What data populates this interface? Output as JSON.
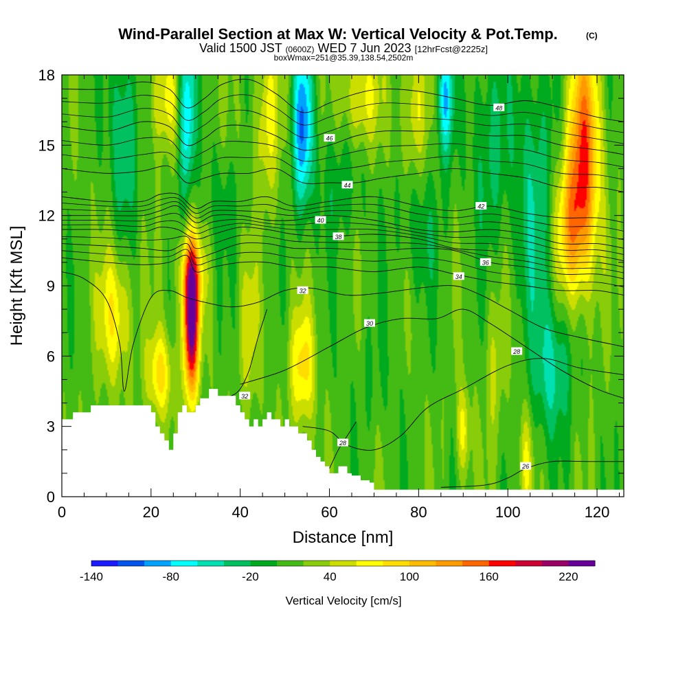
{
  "header": {
    "title": "Wind-Parallel Section at Max W: Vertical Velocity & Pot.Temp.",
    "copyright": "(C)",
    "valid_line_a": "Valid 1500 JST",
    "valid_line_b": "(0600Z)",
    "valid_line_c": "WED 7 Jun 2023",
    "valid_line_d": "[12hrFcst@2225z]",
    "box_line": "boxWmax=251@35.39,138.54,2502m"
  },
  "chart_data": {
    "type": "heatmap",
    "xlabel": "Distance [nm]",
    "ylabel": "Height [Kft MSL]",
    "xlim": [
      0,
      126
    ],
    "ylim": [
      0,
      18
    ],
    "x_ticks": [
      0,
      20,
      40,
      60,
      80,
      100,
      120
    ],
    "x_tick_labels": [
      "0",
      "20",
      "40",
      "60",
      "80",
      "100",
      "120"
    ],
    "y_ticks": [
      0,
      3,
      6,
      9,
      12,
      15,
      18
    ],
    "y_tick_labels": [
      "0",
      "3",
      "6",
      "9",
      "12",
      "15",
      "18"
    ],
    "colorbar": {
      "title": "Vertical Velocity [cm/s]",
      "levels": [
        -140,
        -120,
        -100,
        -80,
        -60,
        -40,
        -20,
        0,
        20,
        40,
        60,
        80,
        100,
        120,
        140,
        160,
        180,
        200,
        220,
        240
      ],
      "labels": [
        "-140",
        "-80",
        "-20",
        "40",
        "100",
        "160",
        "220"
      ],
      "label_values": [
        -140,
        -80,
        -20,
        40,
        100,
        160,
        220
      ],
      "colors": [
        "#1a1aff",
        "#0055ee",
        "#00a2ff",
        "#00ffff",
        "#00e0b0",
        "#00c060",
        "#00aa1e",
        "#44bb14",
        "#88cc0a",
        "#ccdd00",
        "#ffff00",
        "#ffdd00",
        "#ffbb00",
        "#ff9900",
        "#ff6600",
        "#ff0000",
        "#cc0033",
        "#990066",
        "#660099"
      ]
    },
    "terrain_profile": {
      "x": [
        0,
        2.5,
        2.5,
        6.5,
        6.5,
        20,
        20,
        21,
        21,
        22,
        22,
        23,
        23,
        24,
        24,
        25,
        25,
        26,
        26,
        27,
        27,
        28,
        28,
        30,
        30,
        31,
        31,
        33,
        33,
        35,
        35,
        39,
        39,
        40,
        40,
        41,
        41,
        42,
        42,
        43,
        43,
        44,
        44,
        45,
        45,
        46,
        46,
        47,
        47,
        49,
        49,
        50,
        50,
        51,
        51,
        53,
        53,
        55,
        55,
        56,
        56,
        57,
        57,
        58,
        58,
        59,
        59,
        60,
        60,
        62,
        62,
        64,
        64,
        65,
        65,
        67,
        67,
        69,
        69,
        70,
        70,
        74,
        74,
        126
      ],
      "y": [
        3.3,
        3.3,
        3.6,
        3.6,
        3.9,
        3.9,
        3.6,
        3.6,
        3.0,
        3.0,
        2.7,
        2.7,
        2.4,
        2.4,
        2.0,
        2.0,
        2.7,
        2.7,
        3.6,
        3.6,
        3.9,
        3.9,
        3.6,
        3.6,
        3.9,
        3.9,
        4.2,
        4.2,
        4.6,
        4.6,
        4.3,
        4.3,
        3.9,
        3.9,
        3.6,
        3.6,
        3.3,
        3.3,
        3.0,
        3.0,
        3.3,
        3.3,
        3.0,
        3.0,
        3.3,
        3.3,
        3.6,
        3.6,
        3.3,
        3.3,
        3.0,
        3.0,
        3.3,
        3.3,
        3.0,
        3.0,
        2.7,
        2.7,
        2.4,
        2.4,
        2.0,
        2.0,
        1.7,
        1.7,
        1.5,
        1.5,
        1.3,
        1.3,
        1.0,
        1.0,
        1.3,
        1.3,
        1.0,
        1.0,
        0.9,
        0.9,
        0.7,
        0.7,
        0.6,
        0.6,
        0.3,
        0.3,
        0.3,
        0.3
      ]
    },
    "w_features": [
      {
        "x": 29,
        "y": 7.5,
        "sx": 1.2,
        "sy": 2.2,
        "w": 230
      },
      {
        "x": 29,
        "y": 9.5,
        "sx": 2.0,
        "sy": 1.2,
        "w": 70
      },
      {
        "x": 12,
        "y": 7.8,
        "sx": 2.5,
        "sy": 2.0,
        "w": 70
      },
      {
        "x": 22,
        "y": 5.2,
        "sx": 2.0,
        "sy": 1.3,
        "w": 75
      },
      {
        "x": 54,
        "y": 5.5,
        "sx": 2.0,
        "sy": 1.8,
        "w": 75
      },
      {
        "x": 90,
        "y": 2.8,
        "sx": 1.0,
        "sy": 1.4,
        "w": 60
      },
      {
        "x": 104,
        "y": 1.5,
        "sx": 1.0,
        "sy": 1.5,
        "w": 45
      },
      {
        "x": 117,
        "y": 14.5,
        "sx": 2.5,
        "sy": 3.5,
        "w": 140
      },
      {
        "x": 114,
        "y": 11.5,
        "sx": 2.5,
        "sy": 2.0,
        "w": 80
      },
      {
        "x": 23,
        "y": 17.0,
        "sx": 2.5,
        "sy": 1.5,
        "w": 55
      },
      {
        "x": 67,
        "y": 17.0,
        "sx": 3.0,
        "sy": 1.5,
        "w": 60
      },
      {
        "x": 79,
        "y": 16.5,
        "sx": 2.0,
        "sy": 2.0,
        "w": 50
      },
      {
        "x": 46,
        "y": 16.0,
        "sx": 2.0,
        "sy": 2.5,
        "w": 50
      },
      {
        "x": 42,
        "y": 7.0,
        "sx": 1.5,
        "sy": 2.5,
        "w": 35
      },
      {
        "x": 97,
        "y": 5.5,
        "sx": 1.5,
        "sy": 2.5,
        "w": 30
      },
      {
        "x": 28,
        "y": 16.5,
        "sx": 1.3,
        "sy": 2.5,
        "w": -100
      },
      {
        "x": 54,
        "y": 15.8,
        "sx": 1.5,
        "sy": 2.5,
        "w": -110
      },
      {
        "x": 86,
        "y": 17.0,
        "sx": 1.3,
        "sy": 1.8,
        "w": -90
      },
      {
        "x": 14,
        "y": 15.5,
        "sx": 2.0,
        "sy": 3.0,
        "w": -60
      },
      {
        "x": 106,
        "y": 13.0,
        "sx": 3.0,
        "sy": 4.0,
        "w": -50
      },
      {
        "x": 110,
        "y": 5.5,
        "sx": 3.0,
        "sy": 2.0,
        "w": -60
      },
      {
        "x": 96,
        "y": 15.0,
        "sx": 3.0,
        "sy": 3.0,
        "w": -40
      },
      {
        "x": 62,
        "y": 13.5,
        "sx": 4.0,
        "sy": 2.0,
        "w": -25
      },
      {
        "x": 80,
        "y": 11.5,
        "sx": 4.0,
        "sy": 2.0,
        "w": -25
      },
      {
        "x": 36,
        "y": 12.5,
        "sx": 3.0,
        "sy": 1.5,
        "w": -20
      },
      {
        "x": 70,
        "y": 5.0,
        "sx": 5.0,
        "sy": 2.0,
        "w": -10
      }
    ],
    "w_background": 12,
    "theta_contours": [
      {
        "level": 26,
        "label": "26",
        "x": [
          85,
          95,
          100,
          104,
          110,
          118,
          126
        ],
        "y": [
          0.4,
          0.5,
          0.8,
          1.2,
          1.5,
          1.5,
          1.5
        ],
        "label_x": 104,
        "label_y": 1.3
      },
      {
        "level": 28,
        "label": "28",
        "x": [
          54,
          60,
          64,
          70,
          76,
          82,
          90,
          100,
          108,
          116,
          126
        ],
        "y": [
          3.0,
          2.8,
          2.2,
          2.0,
          2.6,
          3.8,
          4.6,
          5.6,
          5.9,
          5.5,
          5.2
        ],
        "label_x": 102,
        "label_y": 6.2
      },
      {
        "level": 28,
        "label": "28",
        "x": [
          60,
          62,
          64,
          66
        ],
        "y": [
          1.2,
          2.0,
          2.6,
          3.2
        ],
        "label_x": 63,
        "label_y": 2.3
      },
      {
        "level": 30,
        "label": "30",
        "x": [
          40,
          50,
          60,
          68,
          76,
          84,
          90,
          96,
          104,
          112,
          120,
          126
        ],
        "y": [
          4.8,
          5.4,
          6.4,
          7.2,
          7.6,
          7.6,
          8.0,
          7.4,
          6.4,
          5.4,
          4.6,
          4.2
        ],
        "label_x": 69,
        "label_y": 7.4
      },
      {
        "level": 32,
        "label": "32",
        "x": [
          0,
          5,
          10,
          13,
          14,
          16,
          20,
          24,
          28,
          32,
          38,
          44,
          50,
          56,
          64,
          72,
          80,
          88,
          94,
          100,
          108,
          116,
          126
        ],
        "y": [
          9.6,
          9.3,
          8.4,
          6.5,
          4.5,
          6.5,
          8.5,
          8.8,
          8.5,
          8.3,
          8.1,
          8.3,
          8.8,
          8.9,
          8.6,
          8.7,
          8.9,
          9.0,
          8.6,
          8.0,
          7.2,
          6.8,
          6.4
        ],
        "label_x": 54,
        "label_y": 8.8
      },
      {
        "level": 32,
        "label": "32",
        "x": [
          36,
          38,
          40,
          42,
          44,
          46
        ],
        "y": [
          4.2,
          4.3,
          4.6,
          5.4,
          6.8,
          8.0
        ],
        "label_x": 41,
        "label_y": 4.3
      },
      {
        "level": 34,
        "label": "34",
        "x": [
          0,
          10,
          18,
          24,
          28,
          30,
          34,
          40,
          46,
          52,
          60,
          70,
          80,
          88,
          96,
          104,
          112,
          120,
          126
        ],
        "y": [
          10.2,
          10.0,
          9.9,
          10.0,
          10.3,
          9.6,
          9.8,
          10.0,
          10.0,
          9.8,
          9.8,
          9.6,
          9.8,
          9.5,
          9.2,
          9.0,
          8.8,
          8.8,
          8.6
        ],
        "label_x": 89,
        "label_y": 9.4
      },
      {
        "level": 36,
        "label": "36",
        "x": [
          0,
          10,
          18,
          24,
          28,
          30,
          34,
          40,
          46,
          52,
          60,
          70,
          80,
          88,
          96,
          104,
          112,
          120,
          126
        ],
        "y": [
          10.8,
          10.7,
          10.6,
          10.5,
          10.8,
          10.2,
          10.4,
          10.8,
          10.8,
          10.6,
          10.6,
          10.5,
          10.6,
          10.5,
          10.0,
          9.8,
          9.5,
          9.5,
          9.3
        ],
        "label_x": 95,
        "label_y": 10.0
      },
      {
        "level": 38,
        "label": "38",
        "x": [
          0,
          10,
          18,
          22,
          26,
          30,
          34,
          40,
          46,
          52,
          60,
          70,
          80,
          88,
          96,
          104,
          112,
          120,
          126
        ],
        "y": [
          11.4,
          11.4,
          11.3,
          11.5,
          11.4,
          11.0,
          11.2,
          11.5,
          11.4,
          11.2,
          11.1,
          11.2,
          11.0,
          10.6,
          10.5,
          10.3,
          10.0,
          10.0,
          9.8
        ],
        "label_x": 62,
        "label_y": 11.1
      },
      {
        "level": 40,
        "label": "40",
        "x": [
          0,
          10,
          18,
          22,
          26,
          30,
          34,
          40,
          46,
          52,
          60,
          70,
          80,
          88,
          96,
          104,
          112,
          120,
          126
        ],
        "y": [
          12.0,
          12.0,
          12.0,
          12.2,
          12.4,
          11.7,
          12.0,
          12.0,
          11.8,
          11.8,
          12.0,
          11.8,
          11.4,
          11.3,
          11.4,
          11.2,
          10.8,
          10.8,
          10.6
        ],
        "label_x": 58,
        "label_y": 11.8
      },
      {
        "level": 42,
        "label": "42",
        "x": [
          0,
          10,
          18,
          22,
          26,
          30,
          34,
          40,
          46,
          52,
          60,
          70,
          80,
          88,
          96,
          104,
          112,
          120,
          126
        ],
        "y": [
          12.8,
          12.6,
          12.6,
          12.9,
          12.9,
          12.3,
          12.6,
          12.6,
          12.8,
          12.4,
          12.6,
          12.8,
          12.4,
          12.2,
          12.4,
          12.1,
          11.9,
          11.9,
          11.7
        ],
        "label_x": 94,
        "label_y": 12.4
      },
      {
        "level": 44,
        "label": "44",
        "x": [
          0,
          10,
          18,
          24,
          28,
          32,
          36,
          42,
          48,
          54,
          60,
          66,
          72,
          80,
          88,
          96,
          104,
          112,
          120,
          126
        ],
        "y": [
          14.0,
          13.8,
          13.9,
          14.1,
          13.4,
          13.6,
          13.8,
          13.8,
          14.0,
          13.4,
          13.4,
          13.4,
          13.6,
          13.8,
          14.0,
          13.8,
          13.6,
          13.2,
          13.2,
          13.0
        ],
        "label_x": 64,
        "label_y": 13.3
      },
      {
        "level": 46,
        "label": "46",
        "x": [
          0,
          10,
          18,
          24,
          28,
          32,
          36,
          42,
          48,
          54,
          60,
          66,
          72,
          80,
          88,
          96,
          104,
          112,
          120,
          126
        ],
        "y": [
          15.8,
          15.6,
          16.0,
          15.8,
          15.0,
          15.3,
          15.8,
          15.8,
          15.4,
          14.8,
          15.0,
          15.4,
          15.6,
          15.6,
          15.6,
          15.4,
          15.4,
          15.0,
          14.8,
          14.6
        ],
        "label_x": 60,
        "label_y": 15.3
      },
      {
        "level": 48,
        "label": "48",
        "x": [
          0,
          10,
          18,
          24,
          28,
          32,
          36,
          42,
          48,
          54,
          60,
          66,
          72,
          80,
          88,
          96,
          104,
          112,
          120,
          126
        ],
        "y": [
          17.4,
          17.4,
          17.7,
          17.4,
          16.6,
          17.0,
          17.6,
          17.8,
          17.2,
          16.4,
          16.8,
          17.2,
          17.4,
          17.3,
          17.0,
          16.7,
          16.9,
          16.6,
          16.2,
          16.0
        ],
        "label_x": 98,
        "label_y": 16.6
      }
    ],
    "extra_theta_lines": 34
  }
}
